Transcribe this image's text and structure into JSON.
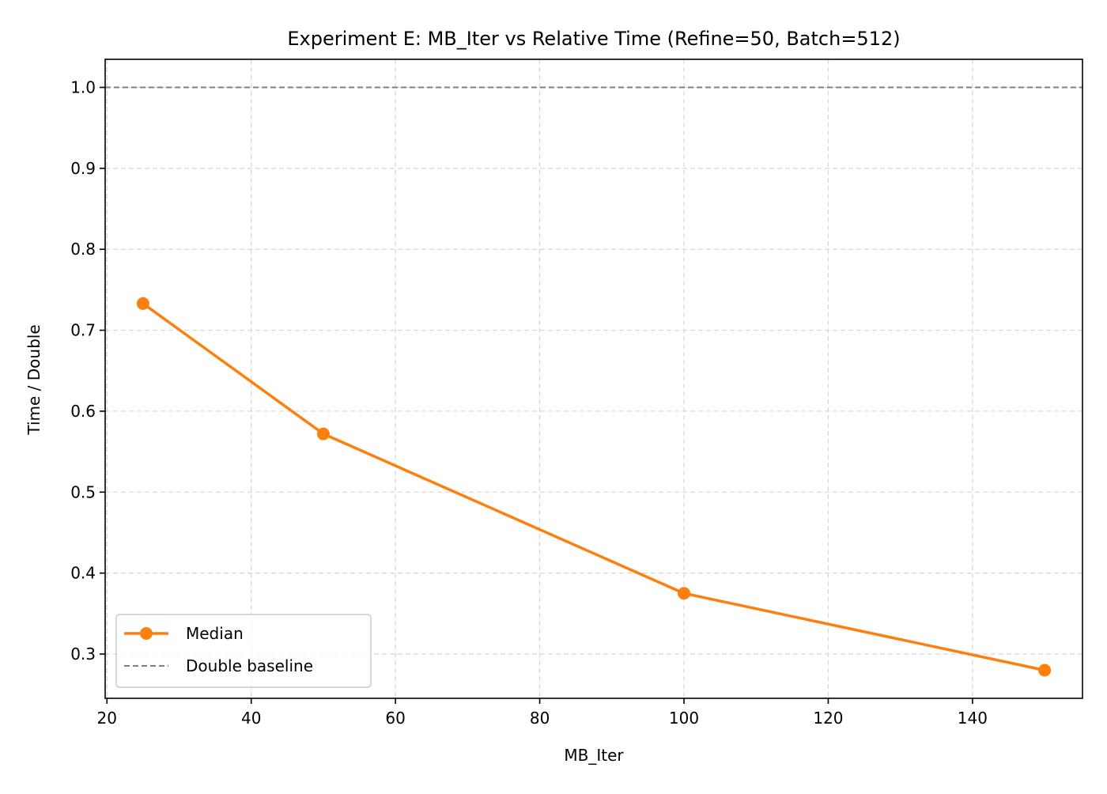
{
  "chart_data": {
    "type": "line",
    "title": "Experiment E: MB_Iter vs Relative Time (Refine=50, Batch=512)",
    "xlabel": "MB_Iter",
    "ylabel": "Time / Double",
    "xlim": [
      19.75,
      155.25
    ],
    "ylim": [
      0.2453,
      1.0347
    ],
    "xticks": [
      20,
      40,
      60,
      80,
      100,
      120,
      140
    ],
    "yticks": [
      0.3,
      0.4,
      0.5,
      0.6,
      0.7,
      0.8,
      0.9,
      1.0
    ],
    "xtick_labels": [
      "20",
      "40",
      "60",
      "80",
      "100",
      "120",
      "140"
    ],
    "ytick_labels": [
      "0.3",
      "0.4",
      "0.5",
      "0.6",
      "0.7",
      "0.8",
      "0.9",
      "1.0"
    ],
    "grid": true,
    "legend_position": "lower-left",
    "series": [
      {
        "name": "Median",
        "x": [
          25,
          50,
          100,
          150
        ],
        "y": [
          0.733,
          0.572,
          0.375,
          0.28
        ],
        "color": "#ff7f0e",
        "style": "solid",
        "marker": "circle"
      }
    ],
    "reference_lines": [
      {
        "name": "Double baseline",
        "y": 1.0,
        "color": "#808080",
        "style": "dashed"
      }
    ]
  }
}
